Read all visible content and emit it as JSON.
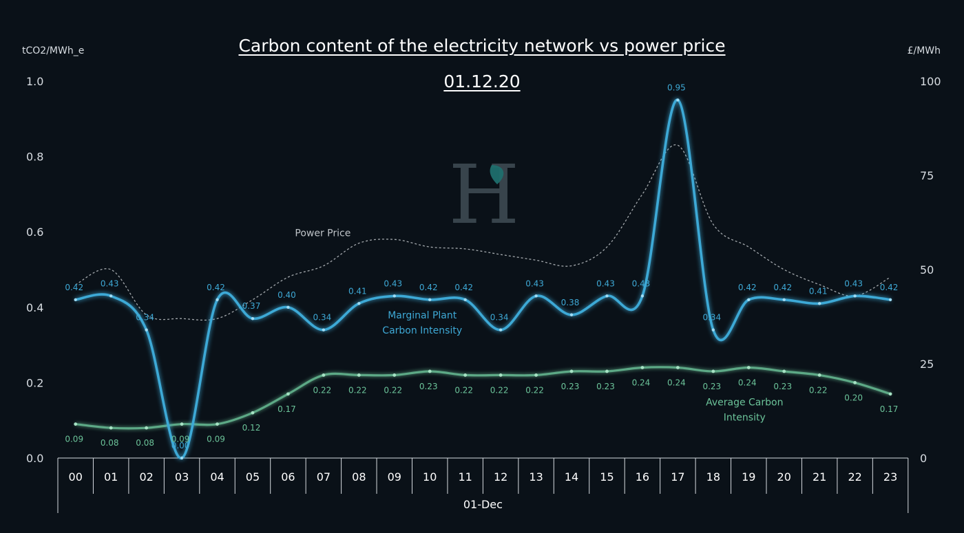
{
  "colors": {
    "background": "#0a1118",
    "marginal": "#3ea9d6",
    "average": "#6cc49a",
    "price": "#bfc4c8",
    "axis": "#d8dde2"
  },
  "watermark": {
    "icon": "H-leaf-logo",
    "letter": "H"
  },
  "chart_data": {
    "type": "line",
    "title": "Carbon content of the electricity network vs power price",
    "subtitle": "01.12.20",
    "left_axis": {
      "unit": "tCO2/MWh_e",
      "range": [
        0,
        1.0
      ],
      "ticks": [
        "0.0",
        "0.2",
        "0.4",
        "0.6",
        "0.8",
        "1.0"
      ]
    },
    "right_axis": {
      "unit": "£/MWh",
      "range": [
        0,
        100
      ],
      "ticks": [
        "0",
        "25",
        "50",
        "75",
        "100"
      ]
    },
    "xlabel": "01-Dec",
    "categories": [
      "00",
      "01",
      "02",
      "03",
      "04",
      "05",
      "06",
      "07",
      "08",
      "09",
      "10",
      "11",
      "12",
      "13",
      "14",
      "15",
      "16",
      "17",
      "18",
      "19",
      "20",
      "21",
      "22",
      "23"
    ],
    "series": [
      {
        "name": "Marginal Plant Carbon Intensity",
        "label_lines": [
          "Marginal Plant",
          "Carbon Intensity"
        ],
        "axis": "left",
        "values": [
          0.42,
          0.43,
          0.34,
          0.0,
          0.42,
          0.37,
          0.4,
          0.34,
          0.41,
          0.43,
          0.42,
          0.42,
          0.34,
          0.43,
          0.38,
          0.43,
          0.43,
          0.95,
          0.34,
          0.42,
          0.42,
          0.41,
          0.43,
          0.42
        ],
        "labels": [
          "0.42",
          "0.43",
          "0.34",
          "0.00",
          "0.42",
          "0.37",
          "0.40",
          "0.34",
          "0.41",
          "0.43",
          "0.42",
          "0.42",
          "0.34",
          "0.43",
          "0.38",
          "0.43",
          "0.43",
          "0.95",
          "0.34",
          "0.42",
          "0.42",
          "0.41",
          "0.43",
          "0.42"
        ]
      },
      {
        "name": "Average Carbon Intensity",
        "label_lines": [
          "Average Carbon",
          "Intensity"
        ],
        "axis": "left",
        "values": [
          0.09,
          0.08,
          0.08,
          0.09,
          0.09,
          0.12,
          0.17,
          0.22,
          0.22,
          0.22,
          0.23,
          0.22,
          0.22,
          0.22,
          0.23,
          0.23,
          0.24,
          0.24,
          0.23,
          0.24,
          0.23,
          0.22,
          0.2,
          0.17
        ],
        "labels": [
          "0.09",
          "0.08",
          "0.08",
          "0.09",
          "0.09",
          "0.12",
          "0.17",
          "0.22",
          "0.22",
          "0.22",
          "0.23",
          "0.22",
          "0.22",
          "0.22",
          "0.23",
          "0.23",
          "0.24",
          "0.24",
          "0.23",
          "0.24",
          "0.23",
          "0.22",
          "0.20",
          "0.17"
        ]
      },
      {
        "name": "Power Price",
        "label_lines": [
          "Power Price"
        ],
        "axis": "right",
        "values": [
          46,
          50,
          38,
          37,
          37,
          42,
          48,
          51,
          57,
          58,
          56,
          55.5,
          54,
          52.5,
          51,
          56,
          70,
          83,
          62,
          56,
          50,
          46,
          43,
          48
        ]
      }
    ]
  }
}
